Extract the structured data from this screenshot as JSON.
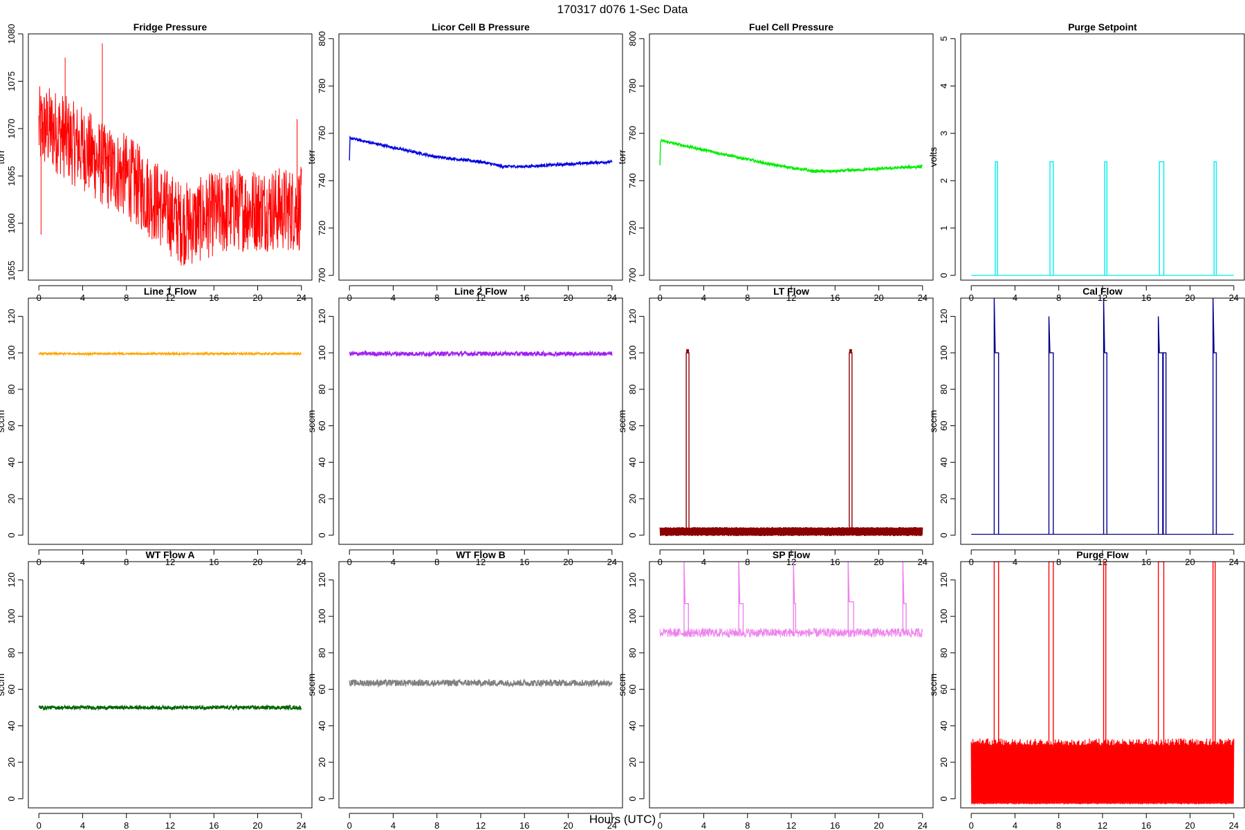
{
  "figure": {
    "title": "170317    d076    1-Sec Data",
    "xlabel": "Hours (UTC)"
  },
  "chart_data": [
    {
      "type": "line",
      "title": "Fridge Pressure",
      "ylabel": "torr",
      "color": "#ff0000",
      "xlim": [
        0,
        24
      ],
      "ylim": [
        1054,
        1080
      ],
      "xticks": [
        0,
        4,
        8,
        12,
        16,
        20,
        24
      ],
      "yticks": [
        1055,
        1060,
        1065,
        1070,
        1075,
        1080
      ],
      "series": [
        {
          "x": [
            0,
            1,
            2,
            3,
            4,
            5,
            6,
            7,
            8,
            9,
            10,
            11,
            12,
            13,
            14,
            15,
            16,
            17,
            18,
            19,
            20,
            21,
            22,
            23,
            24
          ],
          "y": [
            1070,
            1070,
            1069.5,
            1068.5,
            1068,
            1067,
            1066,
            1065.5,
            1065,
            1064,
            1063,
            1062,
            1061,
            1060,
            1060,
            1060.5,
            1061,
            1061,
            1061.5,
            1061.5,
            1061.5,
            1061.5,
            1061.5,
            1061.5,
            1061.5
          ],
          "noise": 4.5
        }
      ],
      "spikes": [
        {
          "x": 5.8,
          "y": 1079
        },
        {
          "x": 0.2,
          "y": 1058.8
        },
        {
          "x": 2.4,
          "y": 1077.5
        },
        {
          "x": 23.6,
          "y": 1071
        }
      ]
    },
    {
      "type": "line",
      "title": "Licor Cell B Pressure",
      "ylabel": "torr",
      "color": "#0000dd",
      "xlim": [
        0,
        24
      ],
      "ylim": [
        698,
        802
      ],
      "xticks": [
        0,
        4,
        8,
        12,
        16,
        20,
        24
      ],
      "yticks": [
        700,
        720,
        740,
        760,
        780,
        800
      ],
      "series": [
        {
          "x": [
            0,
            0.05,
            2,
            4,
            6,
            8,
            10,
            12,
            13,
            14,
            16,
            18,
            20,
            22,
            24
          ],
          "y": [
            748,
            758,
            756,
            754,
            752,
            750,
            749,
            748,
            747,
            746,
            746,
            746.5,
            747,
            747.5,
            748
          ],
          "noise": 0.6
        }
      ]
    },
    {
      "type": "line",
      "title": "Fuel Cell Pressure",
      "ylabel": "torr",
      "color": "#00ee00",
      "xlim": [
        0,
        24
      ],
      "ylim": [
        698,
        802
      ],
      "xticks": [
        0,
        4,
        8,
        12,
        16,
        20,
        24
      ],
      "yticks": [
        700,
        720,
        740,
        760,
        780,
        800
      ],
      "series": [
        {
          "x": [
            0,
            0.05,
            2,
            4,
            6,
            8,
            10,
            12,
            14,
            16,
            18,
            20,
            22,
            24
          ],
          "y": [
            746,
            757,
            755,
            753,
            751,
            749,
            747,
            745.5,
            744,
            744,
            744.5,
            745,
            745.5,
            746
          ],
          "noise": 0.6
        }
      ]
    },
    {
      "type": "line",
      "title": "Purge Setpoint",
      "ylabel": "volts",
      "color": "#00eeee",
      "xlim": [
        0,
        24
      ],
      "ylim": [
        -0.1,
        5.1
      ],
      "xticks": [
        0,
        4,
        8,
        12,
        16,
        20,
        24
      ],
      "yticks": [
        0,
        1,
        2,
        3,
        4,
        5
      ],
      "base": 0,
      "pulses": [
        {
          "start": 2.2,
          "end": 2.4,
          "level": 2.4
        },
        {
          "start": 7.2,
          "end": 7.5,
          "level": 2.4
        },
        {
          "start": 12.2,
          "end": 12.4,
          "level": 2.4
        },
        {
          "start": 17.2,
          "end": 17.6,
          "level": 2.4
        },
        {
          "start": 22.2,
          "end": 22.4,
          "level": 2.4
        }
      ]
    },
    {
      "type": "line",
      "title": "Line 1 Flow",
      "ylabel": "sccm",
      "color": "#ffa500",
      "xlim": [
        0,
        24
      ],
      "ylim": [
        -5,
        130
      ],
      "xticks": [
        0,
        4,
        8,
        12,
        16,
        20,
        24
      ],
      "yticks": [
        0,
        20,
        40,
        60,
        80,
        100,
        120
      ],
      "series": [
        {
          "x": [
            0,
            24
          ],
          "y": [
            99.5,
            99.5
          ],
          "noise": 0.5
        }
      ]
    },
    {
      "type": "line",
      "title": "Line 2 Flow",
      "ylabel": "sccm",
      "color": "#a020f0",
      "xlim": [
        0,
        24
      ],
      "ylim": [
        -5,
        130
      ],
      "xticks": [
        0,
        4,
        8,
        12,
        16,
        20,
        24
      ],
      "yticks": [
        0,
        20,
        40,
        60,
        80,
        100,
        120
      ],
      "series": [
        {
          "x": [
            0,
            24
          ],
          "y": [
            99.5,
            99.5
          ],
          "noise": 1.2
        }
      ]
    },
    {
      "type": "line",
      "title": "LT Flow",
      "ylabel": "sccm",
      "color": "#8b0000",
      "xlim": [
        0,
        24
      ],
      "ylim": [
        -5,
        130
      ],
      "xticks": [
        0,
        4,
        8,
        12,
        16,
        20,
        24
      ],
      "yticks": [
        0,
        20,
        40,
        60,
        80,
        100,
        120
      ],
      "base": 2,
      "band": 2.5,
      "pulses": [
        {
          "start": 2.4,
          "end": 2.65,
          "level": 100
        },
        {
          "start": 17.3,
          "end": 17.55,
          "level": 100
        }
      ]
    },
    {
      "type": "line",
      "title": "Cal Flow",
      "ylabel": "sccm",
      "color": "#00008b",
      "xlim": [
        0,
        24
      ],
      "ylim": [
        -5,
        130
      ],
      "xticks": [
        0,
        4,
        8,
        12,
        16,
        20,
        24
      ],
      "yticks": [
        0,
        20,
        40,
        60,
        80,
        100,
        120
      ],
      "base": 0.5,
      "pulses": [
        {
          "start": 2.1,
          "end": 2.5,
          "level": 100,
          "spike": 130
        },
        {
          "start": 7.1,
          "end": 7.5,
          "level": 100,
          "spike": 120
        },
        {
          "start": 12.1,
          "end": 12.4,
          "level": 100,
          "spike": 130
        },
        {
          "start": 17.1,
          "end": 17.5,
          "level": 100,
          "spike": 120
        },
        {
          "start": 17.55,
          "end": 17.8,
          "level": 100
        },
        {
          "start": 22.1,
          "end": 22.4,
          "level": 100,
          "spike": 130
        }
      ]
    },
    {
      "type": "line",
      "title": "WT Flow A",
      "ylabel": "sccm",
      "color": "#006400",
      "xlim": [
        0,
        24
      ],
      "ylim": [
        -5,
        130
      ],
      "xticks": [
        0,
        4,
        8,
        12,
        16,
        20,
        24
      ],
      "yticks": [
        0,
        20,
        40,
        60,
        80,
        100,
        120
      ],
      "series": [
        {
          "x": [
            0,
            24
          ],
          "y": [
            50,
            50
          ],
          "noise": 1.0
        }
      ]
    },
    {
      "type": "line",
      "title": "WT Flow B",
      "ylabel": "sccm",
      "color": "#808080",
      "xlim": [
        0,
        24
      ],
      "ylim": [
        -5,
        130
      ],
      "xticks": [
        0,
        4,
        8,
        12,
        16,
        20,
        24
      ],
      "yticks": [
        0,
        20,
        40,
        60,
        80,
        100,
        120
      ],
      "series": [
        {
          "x": [
            0,
            24
          ],
          "y": [
            63.5,
            63.5
          ],
          "noise": 1.8
        }
      ]
    },
    {
      "type": "line",
      "title": "SP Flow",
      "ylabel": "sccm",
      "color": "#ee82ee",
      "xlim": [
        0,
        24
      ],
      "ylim": [
        -5,
        130
      ],
      "xticks": [
        0,
        4,
        8,
        12,
        16,
        20,
        24
      ],
      "yticks": [
        0,
        20,
        40,
        60,
        80,
        100,
        120
      ],
      "series": [
        {
          "x": [
            0,
            24
          ],
          "y": [
            91,
            91
          ],
          "noise": 2.5
        }
      ],
      "pulses": [
        {
          "start": 2.2,
          "end": 2.6,
          "level": 107,
          "spike": 130
        },
        {
          "start": 7.2,
          "end": 7.6,
          "level": 107,
          "spike": 130
        },
        {
          "start": 12.2,
          "end": 12.4,
          "level": 107,
          "spike": 130
        },
        {
          "start": 17.2,
          "end": 17.7,
          "level": 108,
          "spike": 130
        },
        {
          "start": 22.2,
          "end": 22.5,
          "level": 107,
          "spike": 130
        }
      ]
    },
    {
      "type": "line",
      "title": "Purge Flow",
      "ylabel": "sccm",
      "color": "#ff0000",
      "xlim": [
        0,
        24
      ],
      "ylim": [
        -5,
        130
      ],
      "xticks": [
        0,
        4,
        8,
        12,
        16,
        20,
        24
      ],
      "yticks": [
        0,
        20,
        40,
        60,
        80,
        100,
        120
      ],
      "band": [
        -3,
        33
      ],
      "pulses": [
        {
          "start": 2.1,
          "end": 2.5,
          "level": 130
        },
        {
          "start": 7.1,
          "end": 7.5,
          "level": 130
        },
        {
          "start": 12.1,
          "end": 12.3,
          "level": 130
        },
        {
          "start": 17.1,
          "end": 17.6,
          "level": 130
        },
        {
          "start": 22.1,
          "end": 22.3,
          "level": 130
        }
      ]
    }
  ]
}
